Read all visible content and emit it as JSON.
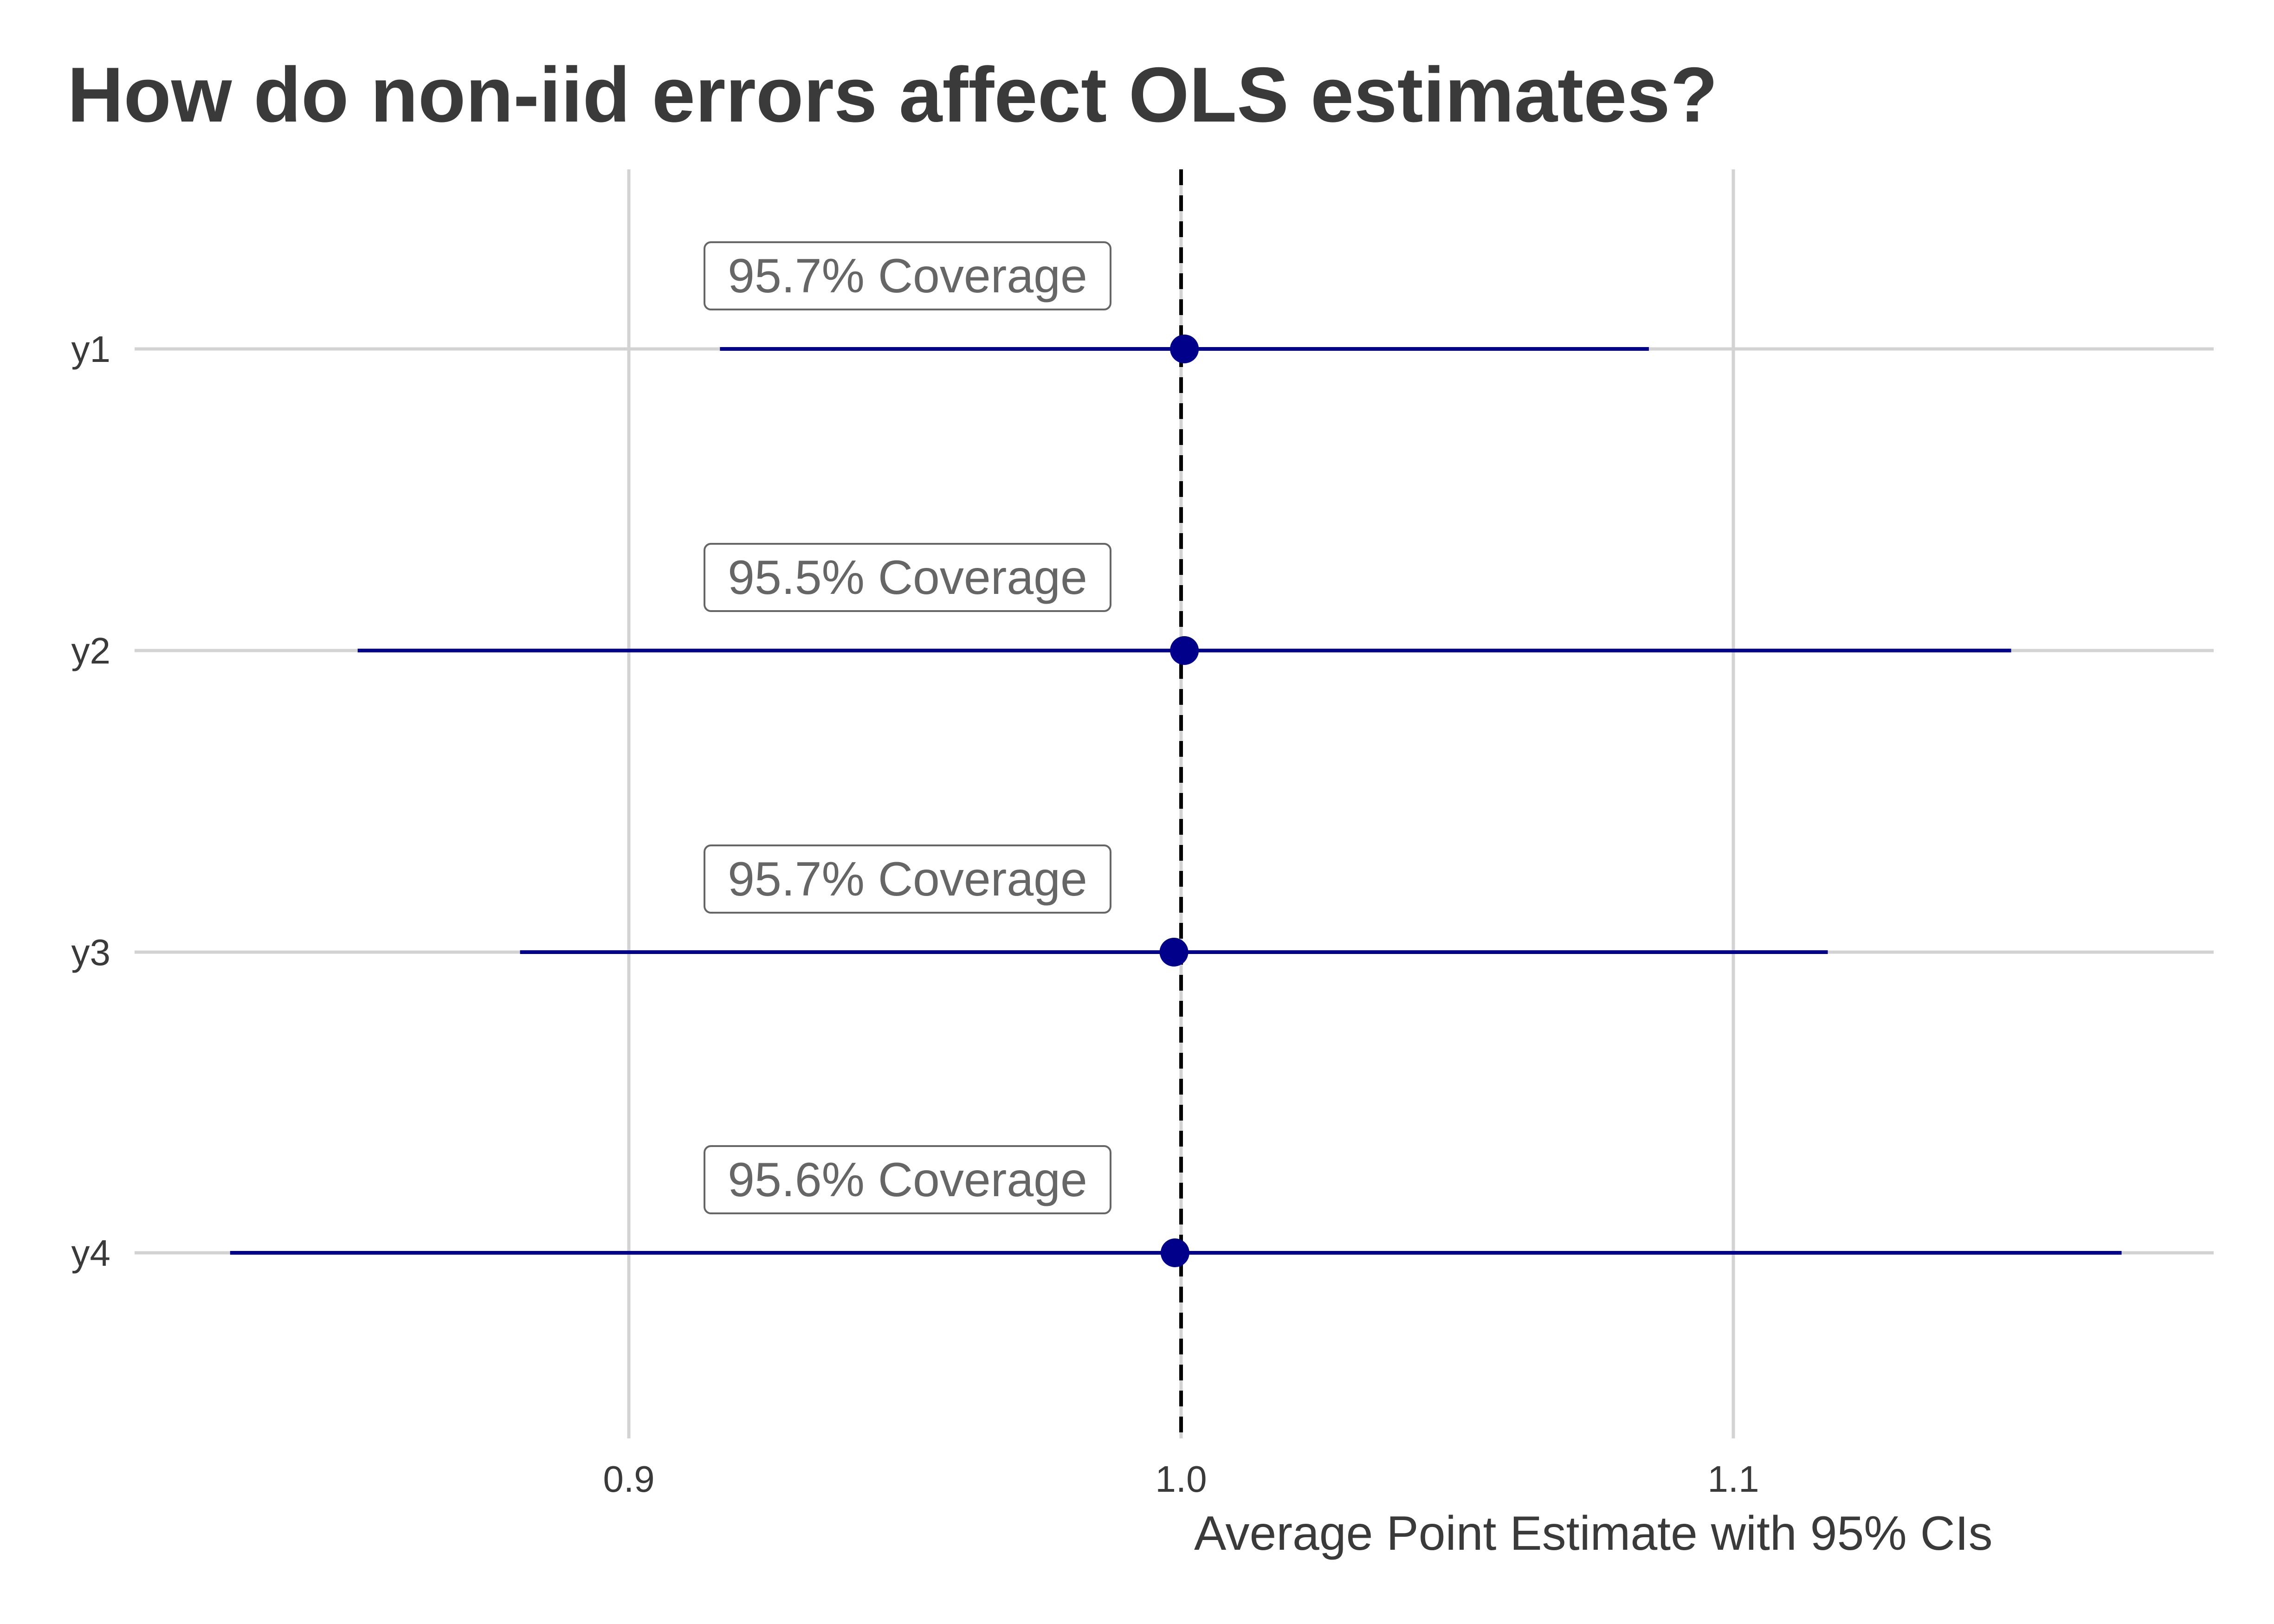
{
  "chart_data": {
    "type": "scatter",
    "title": "How do non-iid errors affect OLS estimates?",
    "xlabel": "Average Point Estimate with 95% CIs",
    "ylabel": "",
    "xlim": [
      0.8,
      1.186
    ],
    "x_ticks": [
      "0.9",
      "1.0",
      "1.1"
    ],
    "x_tick_values": [
      0.9,
      1.0,
      1.1
    ],
    "reference_line": {
      "x": 1.0,
      "style": "dashed",
      "color": "#000000"
    },
    "grid": true,
    "legend": "none",
    "color": "#00008b",
    "categories": [
      "y1",
      "y2",
      "y3",
      "y4"
    ],
    "estimates": [
      1.0006,
      1.0006,
      0.9987,
      0.9989
    ],
    "ci_lower": [
      0.9165,
      0.8509,
      0.8803,
      0.8278
    ],
    "ci_upper": [
      1.0847,
      1.1503,
      1.1171,
      1.1703
    ],
    "annotations": [
      "95.7% Coverage",
      "95.5% Coverage",
      "95.7% Coverage",
      "95.6% Coverage"
    ]
  }
}
